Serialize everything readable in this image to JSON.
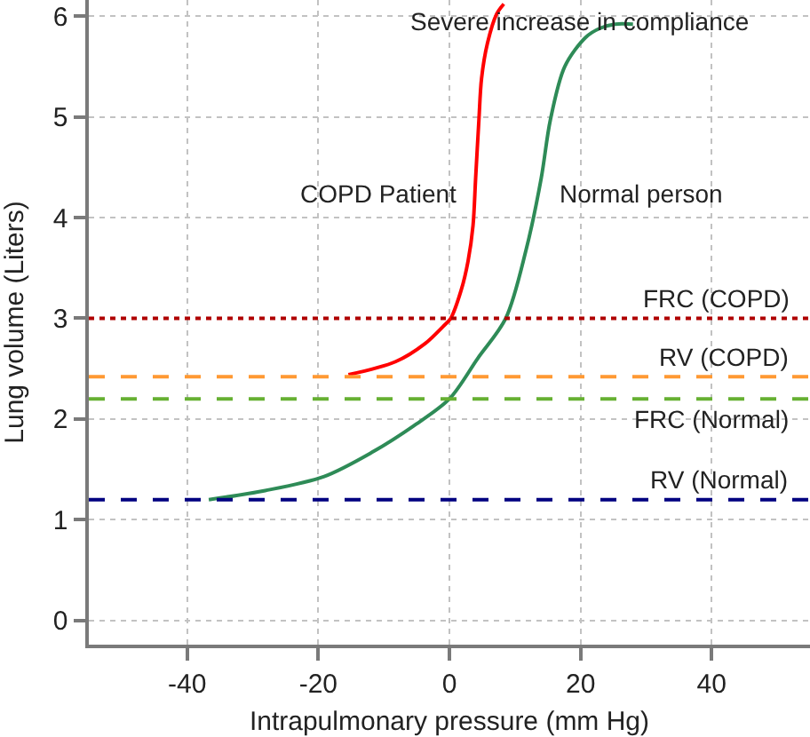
{
  "chart_data": {
    "type": "line",
    "xlabel": "Intrapulmonary pressure (mm Hg)",
    "ylabel": "Lung volume (Liters)",
    "series": [
      {
        "name": "COPD Patient",
        "color": "#ff0000",
        "x": [
          -15.4,
          -8.2,
          -3.7,
          -0.95,
          0.2,
          1.8,
          2.85,
          3.6,
          4.0,
          4.5,
          4.9,
          5.8,
          7.2,
          8.3
        ],
        "values": [
          2.44,
          2.57,
          2.75,
          2.92,
          3.0,
          3.28,
          3.57,
          3.92,
          4.39,
          4.97,
          5.38,
          5.73,
          6.02,
          6.12
        ]
      },
      {
        "name": "Normal person",
        "color": "#2e8b57",
        "x": [
          -36.7,
          -28.1,
          -19.1,
          -11.8,
          -5.5,
          0,
          4.3,
          8.6,
          11.7,
          14.0,
          15.4,
          17.6,
          20.8,
          23,
          25.3,
          28
        ],
        "values": [
          1.2,
          1.29,
          1.43,
          1.67,
          1.93,
          2.2,
          2.6,
          3.0,
          3.68,
          4.39,
          4.97,
          5.5,
          5.79,
          5.88,
          5.92,
          5.92
        ]
      }
    ],
    "xlim": [
      -55,
      55
    ],
    "xticks": [
      -40,
      -20,
      0,
      20,
      40
    ],
    "ylim": [
      -0.24,
      6.16
    ],
    "yticks": [
      0,
      1,
      2,
      3,
      4,
      5,
      6
    ],
    "ref_lines": [
      {
        "axis": "y",
        "value": 3,
        "label": "FRC (COPD)",
        "color": "#b00000",
        "line_style": "dotted"
      },
      {
        "axis": "y",
        "value": 2.42,
        "label": "RV (COPD)",
        "color": "#ff9933",
        "line_style": "dashed"
      },
      {
        "axis": "y",
        "value": 2.2,
        "label": "FRC (Normal)",
        "color": "#66b032",
        "line_style": "dashed"
      },
      {
        "axis": "y",
        "value": 1.2,
        "label": "RV (Normal)",
        "color": "#000080",
        "line_style": "dashed"
      }
    ],
    "annotations": [
      "Severe increase in compliance"
    ],
    "grid": true
  }
}
